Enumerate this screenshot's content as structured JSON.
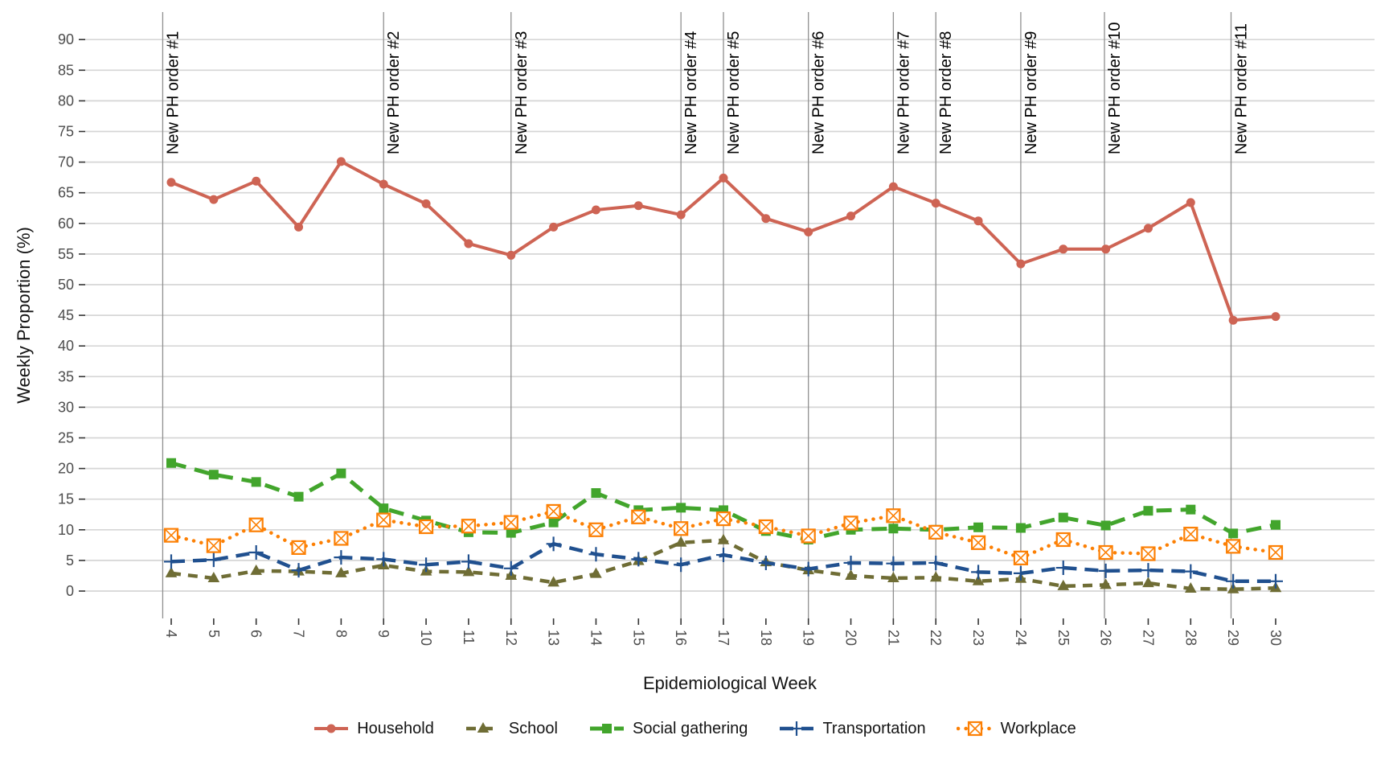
{
  "chart_data": {
    "type": "line",
    "title": "",
    "xlabel": "Epidemiological Week",
    "ylabel": "Weekly Proportion (%)",
    "x": [
      4,
      5,
      6,
      7,
      8,
      9,
      10,
      11,
      12,
      13,
      14,
      15,
      16,
      17,
      18,
      19,
      20,
      21,
      22,
      23,
      24,
      25,
      26,
      27,
      28,
      29,
      30
    ],
    "x_tick_labels": [
      "4",
      "5",
      "6",
      "7",
      "8",
      "9",
      "10",
      "11",
      "12",
      "13",
      "14",
      "15",
      "16",
      "17",
      "18",
      "19",
      "20",
      "21",
      "22",
      "23",
      "24",
      "25",
      "26",
      "27",
      "28",
      "29",
      "30"
    ],
    "y_ticks": [
      0,
      5,
      10,
      15,
      20,
      25,
      30,
      35,
      40,
      45,
      50,
      55,
      60,
      65,
      70,
      75,
      80,
      85,
      90
    ],
    "ylim": [
      0,
      90
    ],
    "grid": "horizontal-major-only",
    "legend_position": "bottom",
    "series": [
      {
        "name": "Household",
        "color": "#CE6454",
        "linetype": "solid",
        "marker": "circle",
        "values": [
          66.7,
          63.9,
          66.9,
          59.4,
          70.1,
          66.4,
          63.2,
          56.7,
          54.8,
          59.4,
          62.2,
          62.9,
          61.4,
          67.4,
          60.8,
          58.6,
          61.2,
          66.0,
          63.3,
          60.4,
          53.4,
          55.8,
          55.8,
          59.2,
          63.4,
          44.2,
          44.8
        ]
      },
      {
        "name": "School",
        "color": "#6F6D35",
        "linetype": "dashed",
        "dash": "12 9",
        "marker": "triangle",
        "values": [
          2.9,
          2.1,
          3.3,
          3.2,
          2.9,
          4.2,
          3.2,
          3.1,
          2.5,
          1.4,
          2.8,
          4.9,
          7.9,
          8.3,
          4.7,
          3.4,
          2.5,
          2.1,
          2.2,
          1.6,
          2.0,
          0.8,
          1.0,
          1.3,
          0.4,
          0.3,
          0.5
        ]
      },
      {
        "name": "Social gathering",
        "color": "#42A52C",
        "linetype": "dashed",
        "dash": "19 11",
        "marker": "square",
        "values": [
          20.9,
          19.0,
          17.8,
          15.4,
          19.2,
          13.5,
          11.5,
          9.6,
          9.5,
          11.2,
          16.0,
          13.2,
          13.6,
          13.2,
          9.8,
          8.4,
          10.0,
          10.2,
          10.0,
          10.4,
          10.3,
          12.0,
          10.7,
          13.1,
          13.3,
          9.4,
          10.8
        ]
      },
      {
        "name": "Transportation",
        "color": "#20508F",
        "linetype": "dashed",
        "dash": "17 10",
        "marker": "plus",
        "values": [
          4.8,
          5.1,
          6.3,
          3.4,
          5.5,
          5.2,
          4.3,
          4.8,
          3.7,
          7.7,
          6.0,
          5.2,
          4.3,
          5.9,
          4.6,
          3.6,
          4.6,
          4.5,
          4.6,
          3.1,
          2.9,
          3.8,
          3.3,
          3.4,
          3.2,
          1.6,
          1.6
        ]
      },
      {
        "name": "Workplace",
        "color": "#FC8005",
        "linetype": "dotted",
        "dash": "0.1 9.5",
        "marker": "square-x",
        "values": [
          9.1,
          7.4,
          10.8,
          7.1,
          8.6,
          11.6,
          10.5,
          10.6,
          11.2,
          13.0,
          10.0,
          12.1,
          10.2,
          11.8,
          10.5,
          9.0,
          11.1,
          12.3,
          9.6,
          7.9,
          5.4,
          8.4,
          6.3,
          6.1,
          9.3,
          7.3,
          6.3
        ]
      }
    ],
    "annotations": [
      {
        "label": "New PH order #1",
        "week": 3.8
      },
      {
        "label": "New PH order #2",
        "week": 9.0
      },
      {
        "label": "New PH order #3",
        "week": 12.0
      },
      {
        "label": "New PH order #4",
        "week": 16.0
      },
      {
        "label": "New PH order #5",
        "week": 17.0
      },
      {
        "label": "New PH order #6",
        "week": 19.0
      },
      {
        "label": "New PH order #7",
        "week": 21.0
      },
      {
        "label": "New PH order #8",
        "week": 22.0
      },
      {
        "label": "New PH order #9",
        "week": 24.0
      },
      {
        "label": "New PH order #10",
        "week": 25.97
      },
      {
        "label": "New PH order #11",
        "week": 28.95
      }
    ],
    "colors": {
      "gridline": "#D6D6D6",
      "annotation_line": "#8F8F8F",
      "axis_text": "#4D4D4D",
      "axis_title": "#141414",
      "annotation_text": "#000000",
      "tick_mark": "#333333",
      "background": "#FFFFFF"
    }
  }
}
